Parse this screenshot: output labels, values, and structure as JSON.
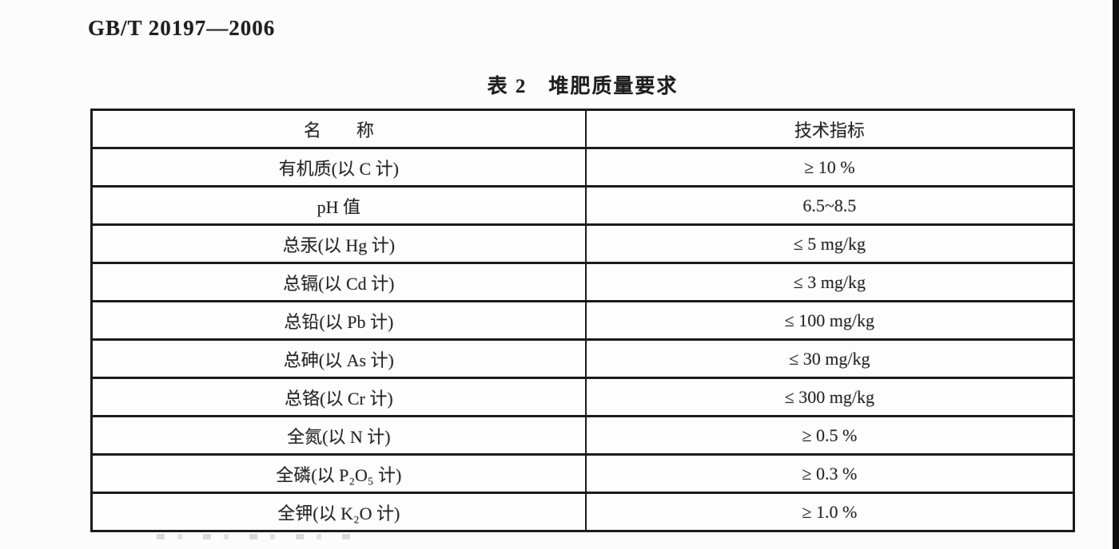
{
  "page": {
    "doc_code": "GB/T 20197—2006",
    "table_title": "表 2　堆肥质量要求"
  },
  "table": {
    "headers": {
      "name": "名　　称",
      "value": "技术指标"
    },
    "rows": [
      {
        "name": "有机质(以 C 计)",
        "value": "≥ 10 %"
      },
      {
        "name": "pH 值",
        "value": "6.5~8.5"
      },
      {
        "name": "总汞(以 Hg 计)",
        "value": "≤ 5 mg/kg"
      },
      {
        "name": "总镉(以 Cd 计)",
        "value": "≤ 3 mg/kg"
      },
      {
        "name": "总铅(以 Pb 计)",
        "value": "≤ 100 mg/kg"
      },
      {
        "name": "总砷(以 As 计)",
        "value": "≤ 30 mg/kg"
      },
      {
        "name": "总铬(以 Cr 计)",
        "value": "≤ 300 mg/kg"
      },
      {
        "name": "全氮(以 N 计)",
        "value": "≥ 0.5 %"
      },
      {
        "name": "全磷(以 P₂O₅ 计)",
        "value": "≥ 0.3 %"
      },
      {
        "name": "全钾(以 K₂O 计)",
        "value": "≥ 1.0 %"
      }
    ]
  }
}
